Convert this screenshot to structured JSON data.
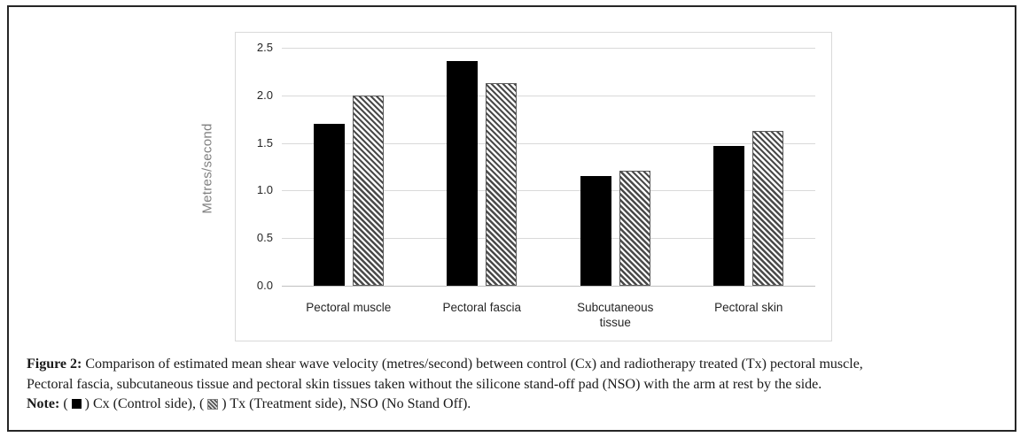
{
  "chart_data": {
    "type": "bar",
    "categories": [
      "Pectoral muscle",
      "Pectoral fascia",
      "Subcutaneous tissue",
      "Pectoral skin"
    ],
    "series": [
      {
        "name": "Cx (Control side)",
        "style": "solid-black",
        "values": [
          1.7,
          2.36,
          1.15,
          1.47
        ]
      },
      {
        "name": "Tx (Treatment side)",
        "style": "hatched",
        "values": [
          2.0,
          2.13,
          1.21,
          1.63
        ]
      }
    ],
    "title": "",
    "xlabel": "",
    "ylabel": "Metres/second",
    "ylim": [
      0,
      2.5
    ],
    "yticks": [
      0.0,
      0.5,
      1.0,
      1.5,
      2.0,
      2.5
    ],
    "grid": true,
    "legend_position": "none",
    "colors": {
      "cx_bar": "#000000",
      "tx_hatch_line": "#4a4a4a",
      "gridline": "#d9d9d9",
      "axis_text": "#262626",
      "ylabel_text": "#808080"
    }
  },
  "caption": {
    "figure_label": "Figure 2:",
    "line1": "Comparison of estimated mean shear wave velocity (metres/second) between control (Cx) and radiotherapy treated (Tx) pectoral muscle,",
    "line2": "Pectoral fascia, subcutaneous tissue and pectoral skin tissues taken without the silicone stand-off pad (NSO) with the arm at rest by the side.",
    "note": {
      "label": "Note:",
      "p1": "(",
      "p2": ") Cx (Control side), (",
      "p3": ") Tx (Treatment side), NSO (No Stand Off)."
    }
  }
}
